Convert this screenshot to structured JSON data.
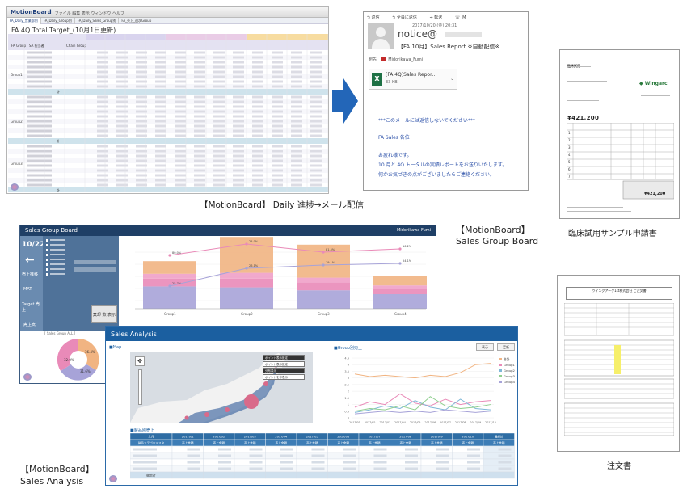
{
  "daily": {
    "logo": "MotionBoard",
    "menu": "ファイル  編集  表示  ウィンドウ  ヘルプ",
    "tabs": [
      "FA_Daily_営業部別",
      "FA_Daily_Group別",
      "FA_Daily_Sales_Group別",
      "FA_売上_週次Group"
    ],
    "title": "FA 4Q Total Target_(10月1日更新)",
    "col_headers": [
      "FA Group",
      "SA 担当者",
      "Chain Group"
    ],
    "groups": [
      "Group1",
      "Group2",
      "Group3"
    ],
    "subtotal_label": "計"
  },
  "email": {
    "actions": [
      "返信",
      "全員に返信",
      "転送",
      "IM"
    ],
    "from": "notice@",
    "datetime": "2017/10/20 (金) 20:31",
    "subject": "【FA 10月】Sales Report ※自動配信※",
    "to_label": "宛先",
    "to_name": "Midorikawa_Fumi",
    "attachment_name": "[FA 4Q]Sales Repor…",
    "attachment_size": "33 KB",
    "body_lines": [
      "***このメールには返信しないでください***",
      "FA  Sales 各位",
      "お疲れ様です。",
      "10 月と 4Q トータルの実績レポートをお送りいたします。",
      "何かお気づきの点がございましたらご連絡ください。"
    ]
  },
  "caption_daily": "【MotionBoard】 Daily 進捗→メール配信",
  "doc1": {
    "title": "臨床試用サンプル申請書",
    "logo": "Wingarc",
    "amount": "¥421,200",
    "amount2": "¥421,200",
    "rows": [
      "1",
      "2",
      "3",
      "4",
      "5",
      "6",
      "7"
    ]
  },
  "caption_sgb": [
    "【MotionBoard】",
    "Sales Group Board"
  ],
  "sgb": {
    "title": "Sales Group Board",
    "user": "Midorikawa Fumi",
    "date": "10/22",
    "side_items": [
      "売上推移",
      "MAT",
      "Target 売上",
      "売上高"
    ],
    "buttons": [
      "棄却",
      "数 表示"
    ],
    "pie_title": "[ Sales Group ALL ]",
    "pie_labels": [
      "36.4%",
      "32.0%",
      "31.6%"
    ],
    "x_labels": [
      "Group1",
      "Group2",
      "Group3",
      "Group4"
    ],
    "point_labels": [
      "80.0%",
      "25.0%",
      "81.5%",
      "16.2%",
      "25.7%",
      "26.1%",
      "19.1%",
      "54.1%"
    ]
  },
  "doc2": {
    "title": "注文書",
    "header": "ウイングアーク1st株式会社 ご注文書"
  },
  "sa": {
    "title": "Sales Analysis",
    "map_label": "■Map",
    "chart_label": "■Group別売上",
    "table_label": "■製品別売上",
    "btns": [
      "表示",
      "更新"
    ],
    "map_options": [
      "ポイント表示設定",
      "ポイント表示設定",
      "分布表示",
      "ポイントを非表示"
    ],
    "legend": [
      "合計",
      "Group1",
      "Group2",
      "Group3",
      "Group4"
    ],
    "y_ticks": [
      "4.5",
      "4",
      "3.5",
      "3",
      "2.5",
      "2",
      "1.5",
      "1",
      "0.5",
      "0"
    ],
    "x_ticks": [
      "2017/01",
      "2017/02",
      "2017/03",
      "2017/04",
      "2017/05",
      "2017/06",
      "2017/07",
      "2017/08",
      "2017/09",
      "2017/10"
    ],
    "table_head_top": [
      "年月",
      "2017/01",
      "2017/02",
      "2017/03",
      "2017/04",
      "2017/05",
      "2017/06",
      "2017/07",
      "2017/08",
      "2017/09",
      "2017/10",
      "最終計"
    ],
    "table_head_sub": [
      "製品カテゴリマスタ",
      "売上金額",
      "売上金額",
      "売上金額",
      "売上金額",
      "売上金額",
      "売上金額",
      "売上金額",
      "売上金額",
      "売上金額",
      "売上金額",
      "売上金額"
    ],
    "table_total": "総合計"
  },
  "caption_sa": [
    "【MotionBoard】",
    "Sales Analysis"
  ],
  "colors": {
    "arrow": "#2366b8",
    "orange": "#f1b482",
    "pink": "#e98ab8",
    "purple": "#a7a3d8",
    "navy": "#1f3f66",
    "blue": "#1b5fa0"
  }
}
